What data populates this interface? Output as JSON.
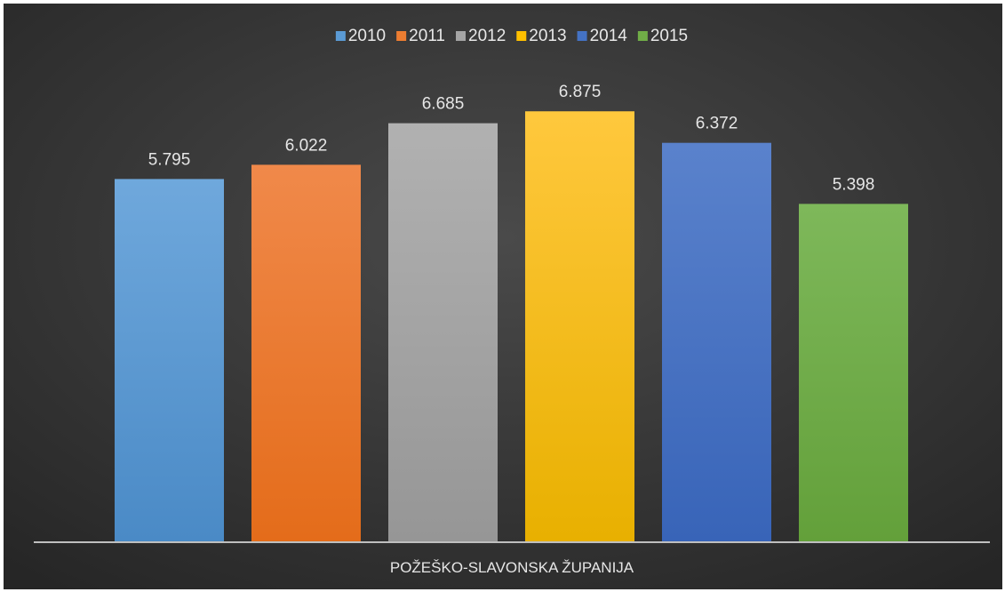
{
  "chart_data": {
    "type": "bar",
    "title": "",
    "xlabel": "",
    "ylabel": "",
    "categories": [
      "POŽEŠKO-SLAVONSKA ŽUPANIJA"
    ],
    "series": [
      {
        "name": "2010",
        "values": [
          5.795
        ],
        "value_label": "5.795",
        "color": "#5b9bd5",
        "color_light": "#6fa8dc",
        "color_dark": "#4a8ac6"
      },
      {
        "name": "2011",
        "values": [
          6.022
        ],
        "value_label": "6.022",
        "color": "#ed7d31",
        "color_light": "#f0894a",
        "color_dark": "#e46c1a"
      },
      {
        "name": "2012",
        "values": [
          6.685
        ],
        "value_label": "6.685",
        "color": "#a5a5a5",
        "color_light": "#b1b1b1",
        "color_dark": "#969696"
      },
      {
        "name": "2013",
        "values": [
          6.875
        ],
        "value_label": "6.875",
        "color": "#ffc000",
        "color_light": "#ffc83d",
        "color_dark": "#e8b000"
      },
      {
        "name": "2014",
        "values": [
          6.372
        ],
        "value_label": "6.372",
        "color": "#4472c4",
        "color_light": "#5a82cc",
        "color_dark": "#3864b8"
      },
      {
        "name": "2015",
        "values": [
          5.398
        ],
        "value_label": "5.398",
        "color": "#70ad47",
        "color_light": "#7eb85a",
        "color_dark": "#63a03a"
      }
    ],
    "ylim": [
      0,
      7.8
    ],
    "grid": false,
    "legend": "top-center",
    "background": "#3b3b3b",
    "axis_color": "#bfbfbf"
  }
}
